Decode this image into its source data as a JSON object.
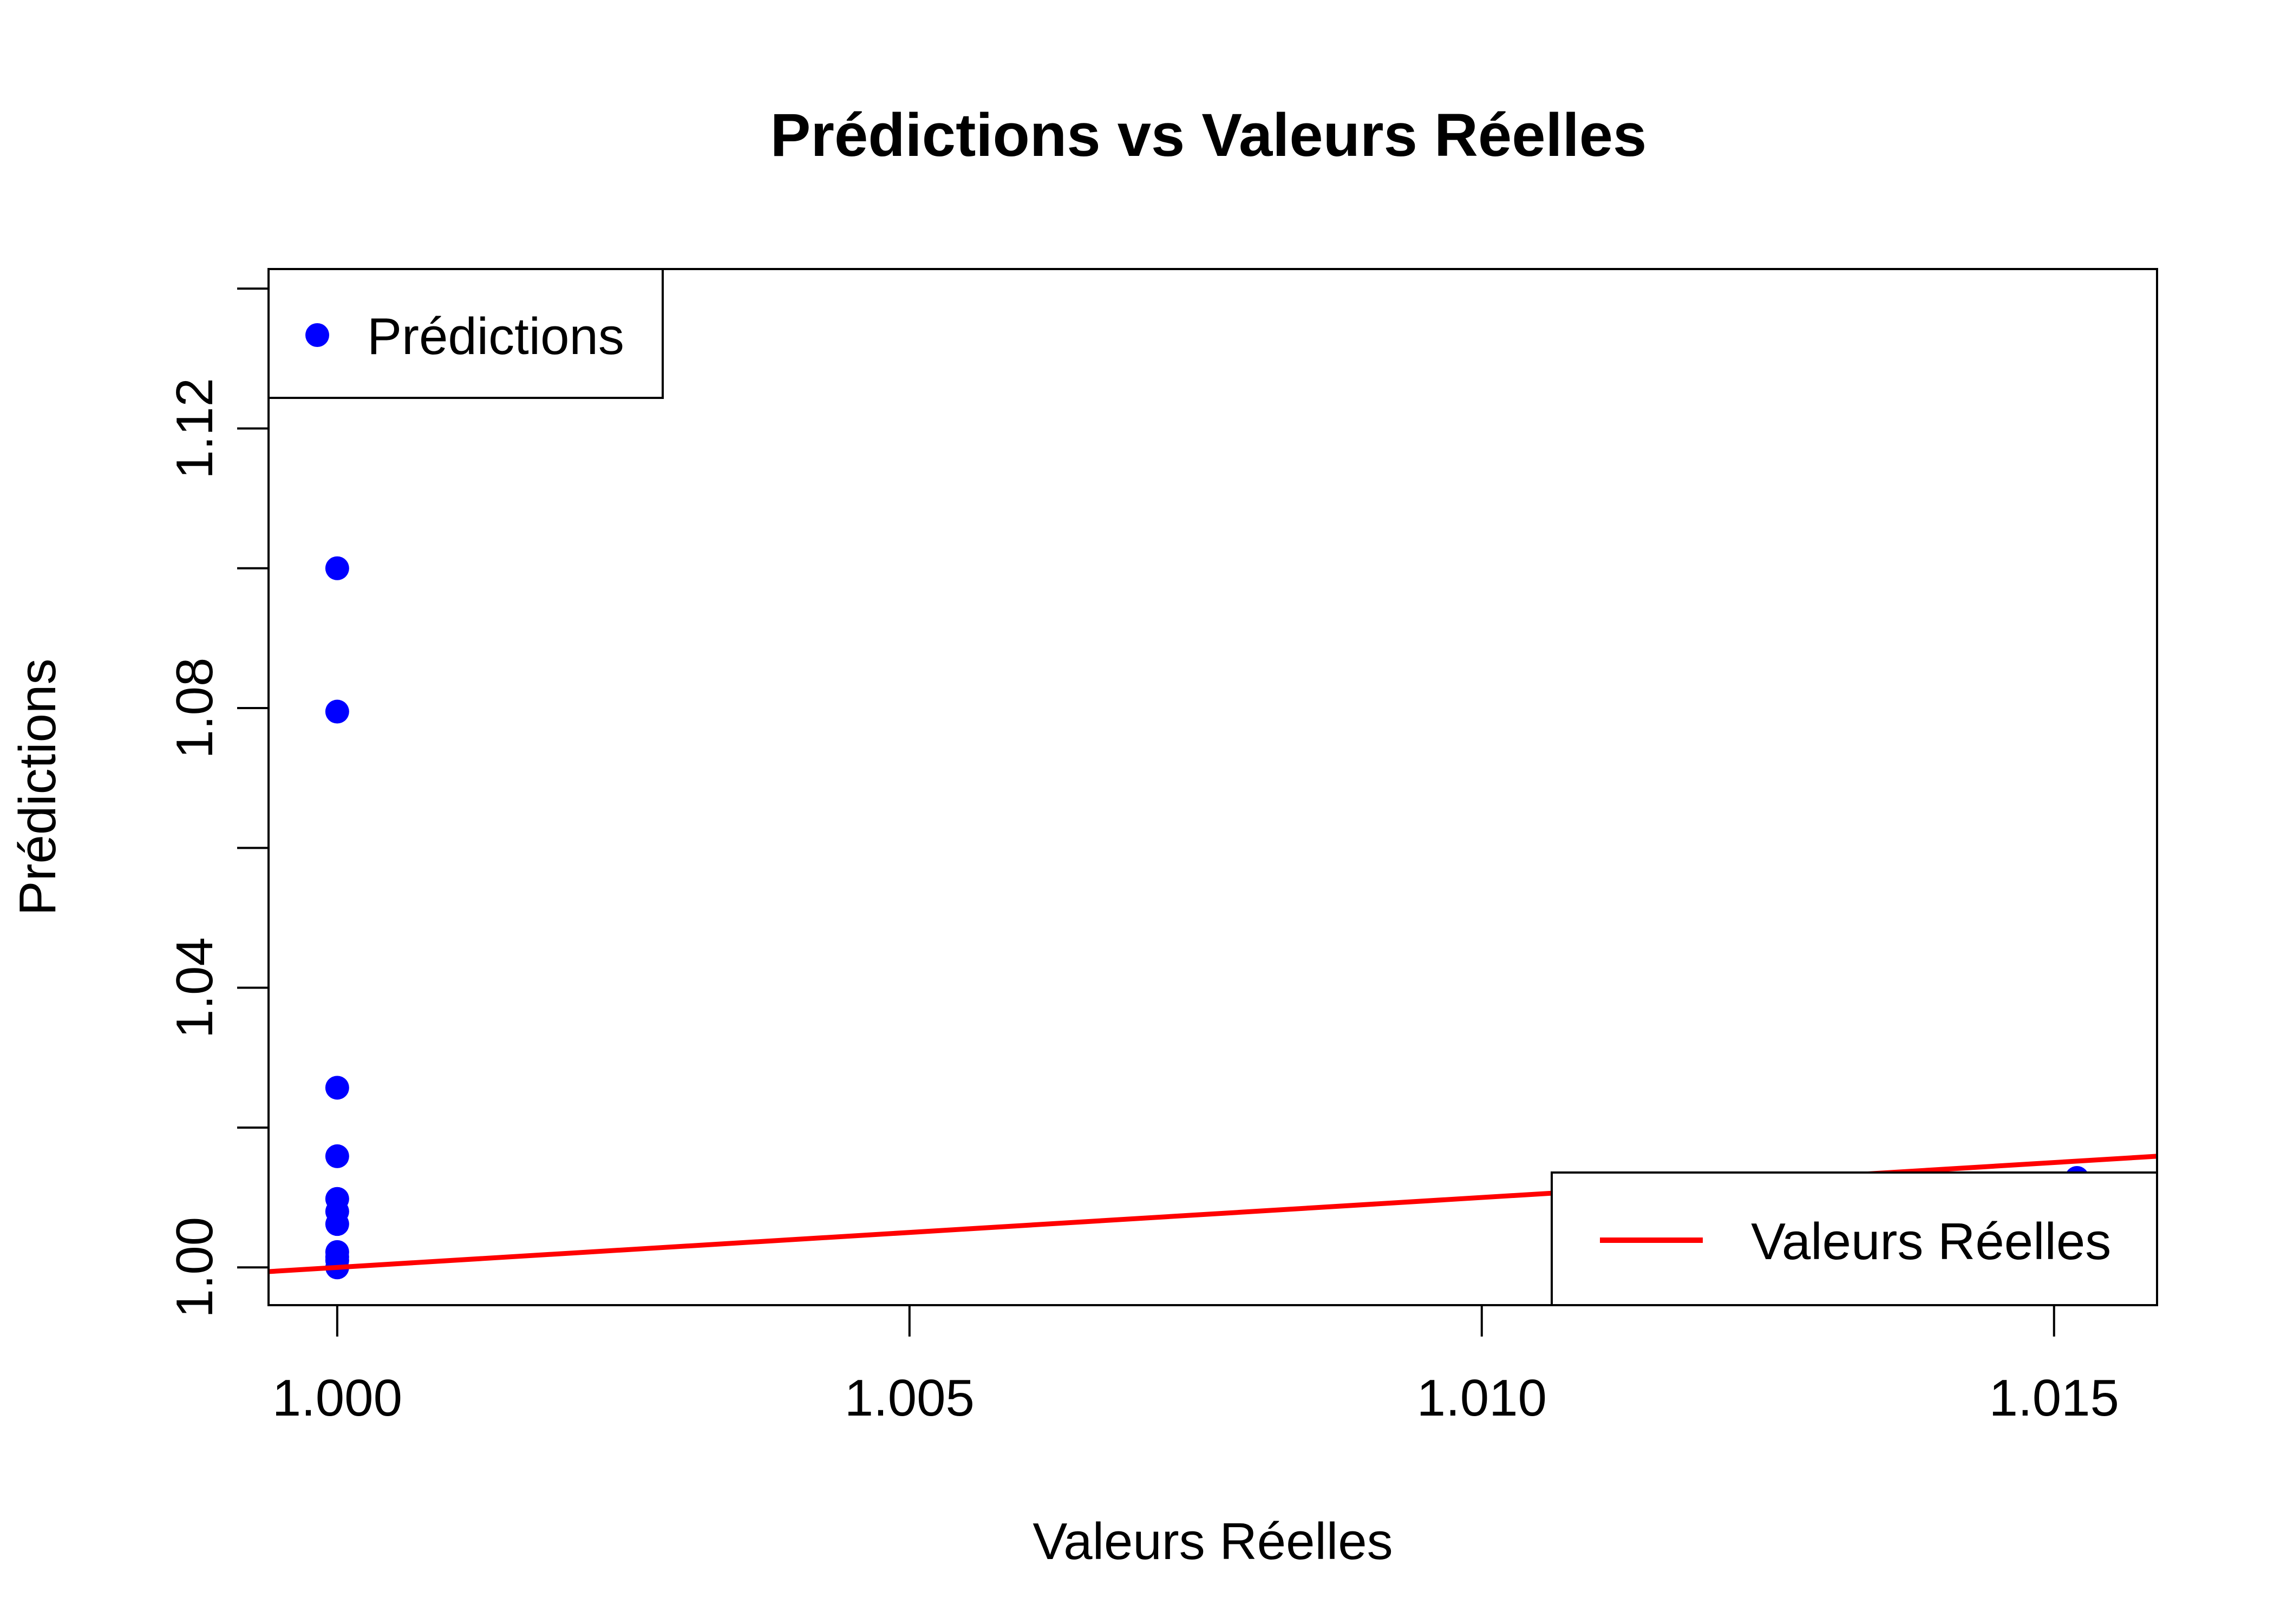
{
  "chart_data": {
    "type": "scatter",
    "title": "Prédictions vs Valeurs Réelles",
    "xlabel": "Valeurs Réelles",
    "ylabel": "Prédictions",
    "xlim": [
      0.9994,
      1.0159
    ],
    "ylim": [
      0.9946,
      1.1428
    ],
    "xticks": [
      1.0,
      1.005,
      1.01,
      1.015
    ],
    "xtick_labels": [
      "1.000",
      "1.005",
      "1.010",
      "1.015"
    ],
    "yticks": [
      1.0,
      1.02,
      1.04,
      1.06,
      1.08,
      1.1,
      1.12,
      1.14
    ],
    "ytick_labels": [
      "1.00",
      "",
      "1.04",
      "",
      "1.08",
      "",
      "1.12",
      ""
    ],
    "grid": false,
    "series": [
      {
        "name": "Prédictions",
        "kind": "points",
        "color": "#0000ff",
        "x": [
          1.0,
          1.0,
          1.0,
          1.0,
          1.0,
          1.0,
          1.0,
          1.0,
          1.0,
          1.0,
          1.0,
          1.0152
        ],
        "y": [
          1.1,
          1.0795,
          1.0257,
          1.0159,
          1.0098,
          1.008,
          1.0062,
          1.0022,
          1.0015,
          1.001,
          1.0,
          1.0128
        ]
      },
      {
        "name": "Valeurs Réelles",
        "kind": "line",
        "color": "#ff0000",
        "x": [
          0.9994,
          1.0159
        ],
        "y": [
          0.9994,
          1.0159
        ]
      }
    ],
    "legends": [
      {
        "placement": "top-left",
        "entries": [
          {
            "label": "Prédictions",
            "symbol": "point",
            "color": "#0000ff"
          }
        ]
      },
      {
        "placement": "bottom-right",
        "entries": [
          {
            "label": "Valeurs Réelles",
            "symbol": "line",
            "color": "#ff0000"
          }
        ]
      }
    ]
  }
}
